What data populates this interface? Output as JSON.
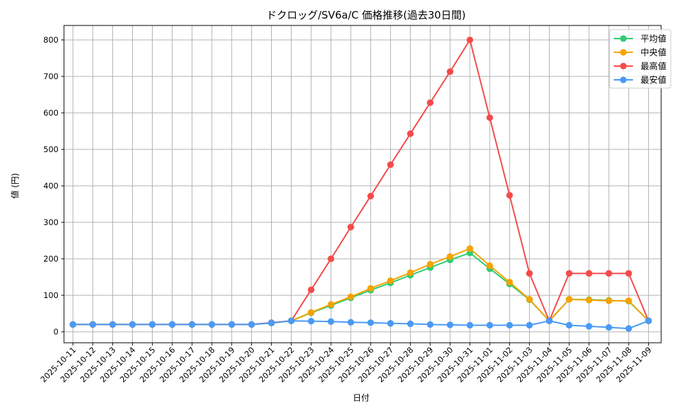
{
  "chart_data": {
    "type": "line",
    "title": "ドクロッグ/SV6a/C 価格推移(過去30日間)",
    "xlabel": "日付",
    "ylabel": "値 (円)",
    "ylim": [
      -30,
      840
    ],
    "yticks": [
      0,
      100,
      200,
      300,
      400,
      500,
      600,
      700,
      800
    ],
    "grid": true,
    "legend_position": "upper right",
    "categories": [
      "2025-10-11",
      "2025-10-12",
      "2025-10-13",
      "2025-10-14",
      "2025-10-15",
      "2025-10-16",
      "2025-10-17",
      "2025-10-18",
      "2025-10-19",
      "2025-10-20",
      "2025-10-21",
      "2025-10-22",
      "2025-10-23",
      "2025-10-24",
      "2025-10-25",
      "2025-10-26",
      "2025-10-27",
      "2025-10-28",
      "2025-10-29",
      "2025-10-30",
      "2025-10-31",
      "2025-11-01",
      "2025-11-02",
      "2025-11-03",
      "2025-11-04",
      "2025-11-05",
      "2025-11-06",
      "2025-11-07",
      "2025-11-08",
      "2025-11-09"
    ],
    "series": [
      {
        "name": "平均値",
        "color": "#2ecc71",
        "values": [
          20,
          20,
          20,
          20,
          20,
          20,
          20,
          20,
          20,
          20,
          24,
          30,
          52,
          72,
          93,
          114,
          134,
          155,
          176,
          197,
          216,
          173,
          131,
          88,
          30,
          89,
          88,
          86,
          84,
          30
        ]
      },
      {
        "name": "中央値",
        "color": "#f5a300",
        "values": [
          20,
          20,
          20,
          20,
          20,
          20,
          20,
          20,
          20,
          20,
          24,
          30,
          53,
          75,
          96,
          119,
          140,
          162,
          185,
          206,
          228,
          181,
          136,
          89,
          30,
          89,
          87,
          85,
          85,
          30
        ]
      },
      {
        "name": "最高値",
        "color": "#f44a4a",
        "values": [
          20,
          20,
          20,
          20,
          20,
          20,
          20,
          20,
          20,
          20,
          25,
          30,
          115,
          200,
          287,
          372,
          458,
          543,
          628,
          713,
          800,
          587,
          374,
          160,
          30,
          160,
          160,
          160,
          160,
          30
        ]
      },
      {
        "name": "最安値",
        "color": "#4a9af5",
        "values": [
          20,
          20,
          20,
          20,
          20,
          20,
          20,
          20,
          20,
          20,
          24,
          30,
          29,
          28,
          26,
          25,
          23,
          22,
          20,
          19,
          18,
          18,
          18,
          18,
          30,
          18,
          15,
          12,
          9,
          30
        ]
      }
    ]
  }
}
